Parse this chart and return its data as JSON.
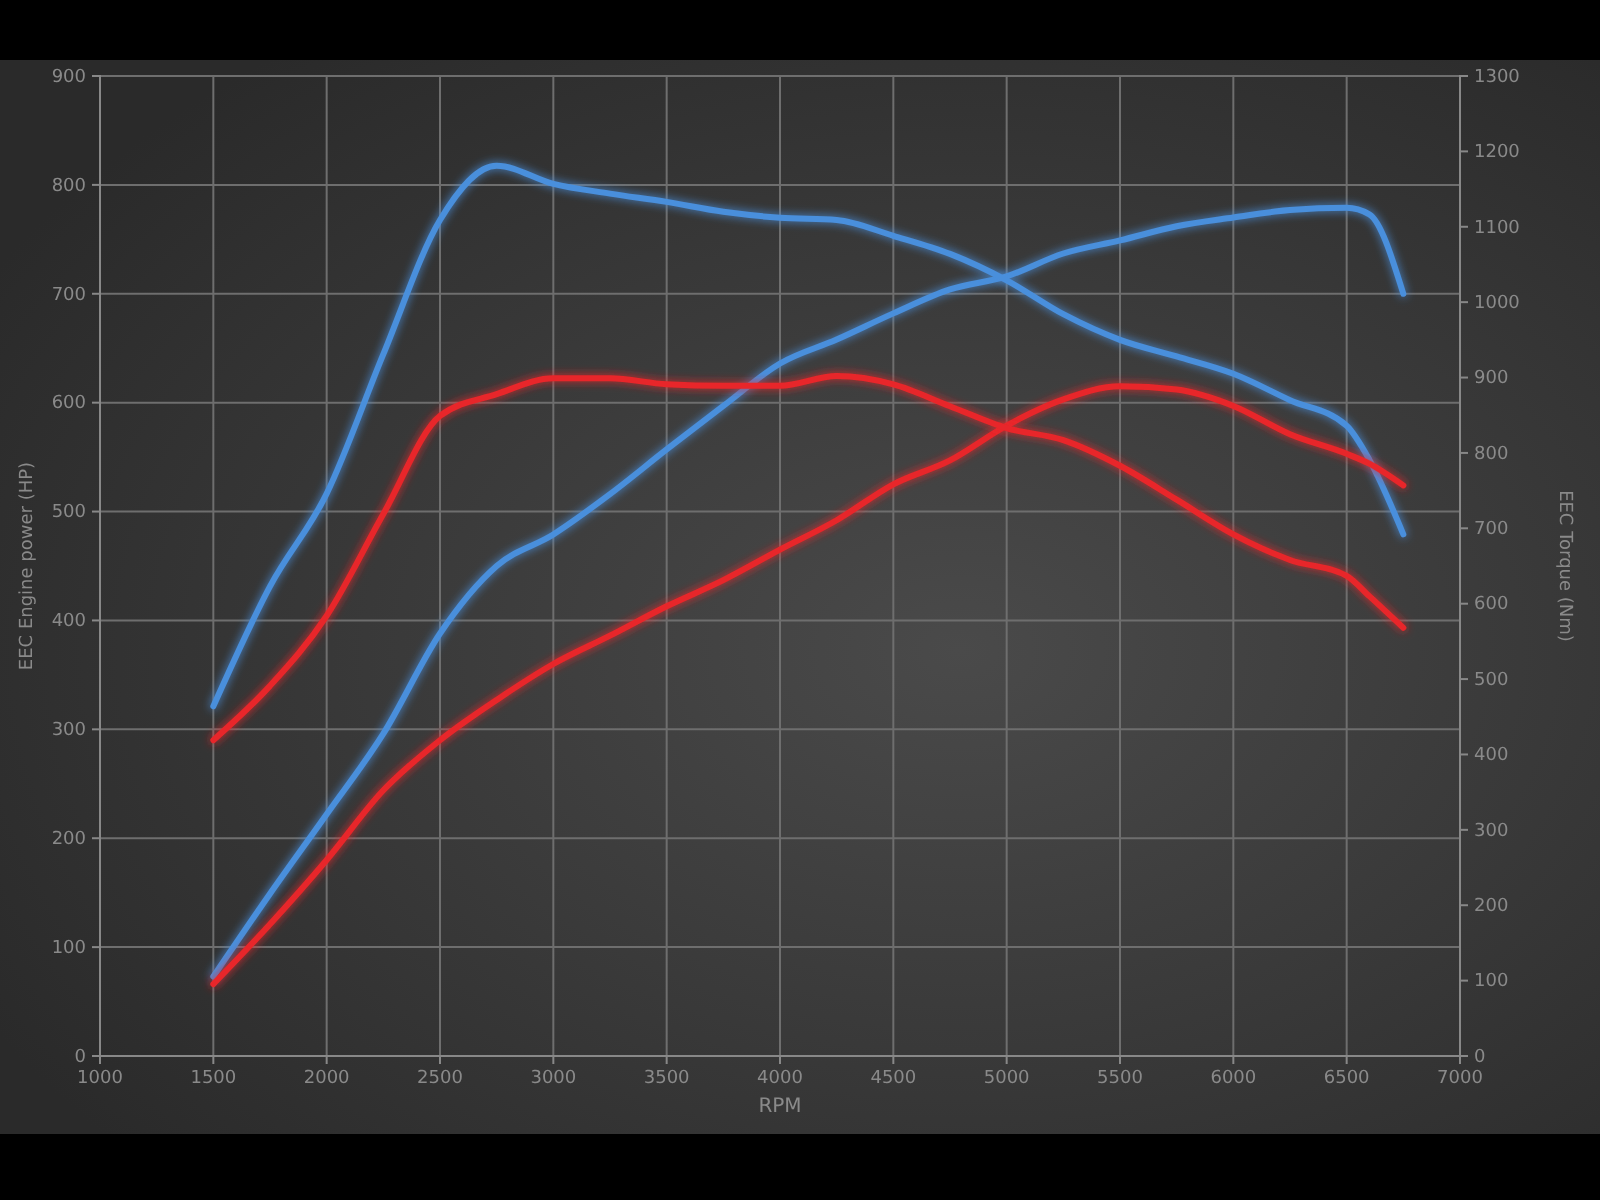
{
  "chart_data": {
    "type": "line",
    "xlabel": "RPM",
    "ylabel": "EEC Engine power (HP)",
    "y2label": "EEC Torque (Nm)",
    "xlim": [
      1000,
      7000
    ],
    "xticks": [
      1000,
      1500,
      2000,
      2500,
      3000,
      3500,
      4000,
      4500,
      5000,
      5500,
      6000,
      6500,
      7000
    ],
    "ylim": [
      0,
      900
    ],
    "yticks": [
      0,
      100,
      200,
      300,
      400,
      500,
      600,
      700,
      800,
      900
    ],
    "y2lim": [
      0,
      1300
    ],
    "y2ticks": [
      0,
      100,
      200,
      300,
      400,
      500,
      600,
      700,
      800,
      900,
      1000,
      1100,
      1200,
      1300
    ],
    "grid": true,
    "line_style": "solid",
    "x": [
      1500,
      1750,
      2000,
      2250,
      2500,
      2750,
      3000,
      3250,
      3500,
      3750,
      4000,
      4250,
      4500,
      4750,
      5000,
      5250,
      5500,
      5750,
      6000,
      6250,
      6500,
      6600,
      6750
    ],
    "series": [
      {
        "color": "#4a8fdc",
        "axis": "y",
        "values": [
          73,
          149,
          222,
          296,
          388,
          450,
          479,
          516,
          557,
          597,
          636,
          658,
          682,
          704,
          716,
          737,
          749,
          762,
          770,
          777,
          779,
          773,
          700
        ]
      },
      {
        "color": "#4a8fdc",
        "axis": "y2",
        "values": [
          464,
          623,
          746,
          931,
          1109,
          1181,
          1157,
          1144,
          1133,
          1120,
          1112,
          1109,
          1088,
          1064,
          1029,
          984,
          950,
          928,
          905,
          870,
          836,
          791,
          692
        ]
      },
      {
        "color": "#e8262a",
        "axis": "y",
        "values": [
          66,
          121,
          180,
          244,
          290,
          327,
          360,
          386,
          413,
          437,
          465,
          492,
          525,
          547,
          579,
          603,
          615,
          612,
          597,
          571,
          553,
          544,
          524
        ]
      },
      {
        "color": "#e8262a",
        "axis": "y2",
        "values": [
          419,
          491,
          584,
          719,
          849,
          878,
          899,
          899,
          891,
          889,
          889,
          902,
          891,
          862,
          833,
          817,
          783,
          738,
          692,
          658,
          637,
          610,
          568
        ]
      }
    ]
  }
}
